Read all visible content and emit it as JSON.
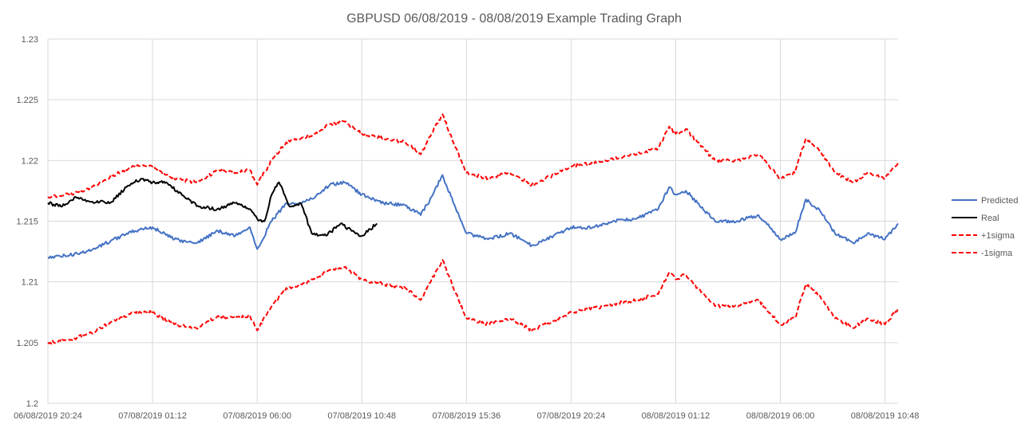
{
  "chart_data": {
    "type": "line",
    "title": "GBPUSD 06/08/2019 - 08/08/2019 Example Trading Graph",
    "xlabel": "",
    "ylabel": "",
    "ylim": [
      1.2,
      1.23
    ],
    "yticks": [
      "1.2",
      "1.205",
      "1.21",
      "1.215",
      "1.22",
      "1.225",
      "1.23"
    ],
    "xticks": [
      "06/08/2019 20:24",
      "07/08/2019 01:12",
      "07/08/2019 06:00",
      "07/08/2019 10:48",
      "07/08/2019 15:36",
      "07/08/2019 20:24",
      "08/08/2019 01:12",
      "08/08/2019 06:00",
      "08/08/2019 10:48"
    ],
    "xlim": [
      "06/08/2019 20:24",
      "08/08/2019 11:24"
    ],
    "grid": true,
    "legend_position": "right",
    "series": [
      {
        "name": "Predicted",
        "color": "#4472c4",
        "style": "solid",
        "points": [
          [
            "06/08/2019 20:24",
            1.212
          ],
          [
            "06/08/2019 21:24",
            1.2122
          ],
          [
            "06/08/2019 22:24",
            1.2126
          ],
          [
            "06/08/2019 23:24",
            1.2135
          ],
          [
            "07/08/2019 00:24",
            1.2142
          ],
          [
            "07/08/2019 01:12",
            1.2145
          ],
          [
            "07/08/2019 02:12",
            1.2135
          ],
          [
            "07/08/2019 03:12",
            1.2132
          ],
          [
            "07/08/2019 04:12",
            1.2142
          ],
          [
            "07/08/2019 05:00",
            1.2138
          ],
          [
            "07/08/2019 05:40",
            1.2145
          ],
          [
            "07/08/2019 06:00",
            1.2127
          ],
          [
            "07/08/2019 06:40",
            1.215
          ],
          [
            "07/08/2019 07:20",
            1.2165
          ],
          [
            "07/08/2019 08:00",
            1.2165
          ],
          [
            "07/08/2019 08:40",
            1.217
          ],
          [
            "07/08/2019 09:20",
            1.218
          ],
          [
            "07/08/2019 10:00",
            1.2182
          ],
          [
            "07/08/2019 10:48",
            1.2172
          ],
          [
            "07/08/2019 11:48",
            1.2165
          ],
          [
            "07/08/2019 12:48",
            1.2163
          ],
          [
            "07/08/2019 13:30",
            1.2155
          ],
          [
            "07/08/2019 14:00",
            1.217
          ],
          [
            "07/08/2019 14:30",
            1.2188
          ],
          [
            "07/08/2019 15:00",
            1.2165
          ],
          [
            "07/08/2019 15:36",
            1.214
          ],
          [
            "07/08/2019 16:36",
            1.2135
          ],
          [
            "07/08/2019 17:36",
            1.214
          ],
          [
            "07/08/2019 18:36",
            1.213
          ],
          [
            "07/08/2019 19:36",
            1.2138
          ],
          [
            "07/08/2019 20:24",
            1.2145
          ],
          [
            "07/08/2019 21:24",
            1.2145
          ],
          [
            "07/08/2019 22:24",
            1.215
          ],
          [
            "07/08/2019 23:24",
            1.2152
          ],
          [
            "08/08/2019 00:24",
            1.216
          ],
          [
            "08/08/2019 00:54",
            1.2178
          ],
          [
            "08/08/2019 01:12",
            1.2172
          ],
          [
            "08/08/2019 01:40",
            1.2175
          ],
          [
            "08/08/2019 02:12",
            1.2165
          ],
          [
            "08/08/2019 03:00",
            1.215
          ],
          [
            "08/08/2019 04:00",
            1.215
          ],
          [
            "08/08/2019 05:00",
            1.2155
          ],
          [
            "08/08/2019 06:00",
            1.2135
          ],
          [
            "08/08/2019 06:40",
            1.214
          ],
          [
            "08/08/2019 07:10",
            1.2168
          ],
          [
            "08/08/2019 07:50",
            1.2158
          ],
          [
            "08/08/2019 08:30",
            1.214
          ],
          [
            "08/08/2019 09:20",
            1.2132
          ],
          [
            "08/08/2019 10:00",
            1.214
          ],
          [
            "08/08/2019 10:48",
            1.2135
          ],
          [
            "08/08/2019 11:24",
            1.2148
          ]
        ]
      },
      {
        "name": "Real",
        "color": "#000000",
        "style": "solid",
        "points": [
          [
            "06/08/2019 20:24",
            1.2165
          ],
          [
            "06/08/2019 21:00",
            1.2162
          ],
          [
            "06/08/2019 21:40",
            1.217
          ],
          [
            "06/08/2019 22:20",
            1.2166
          ],
          [
            "06/08/2019 23:20",
            1.2166
          ],
          [
            "07/08/2019 00:00",
            1.2178
          ],
          [
            "07/08/2019 00:40",
            1.2185
          ],
          [
            "07/08/2019 01:12",
            1.2182
          ],
          [
            "07/08/2019 01:50",
            1.2182
          ],
          [
            "07/08/2019 02:40",
            1.217
          ],
          [
            "07/08/2019 03:20",
            1.2162
          ],
          [
            "07/08/2019 04:10",
            1.216
          ],
          [
            "07/08/2019 05:00",
            1.2165
          ],
          [
            "07/08/2019 05:40",
            1.216
          ],
          [
            "07/08/2019 06:00",
            1.2152
          ],
          [
            "07/08/2019 06:20",
            1.215
          ],
          [
            "07/08/2019 06:40",
            1.2172
          ],
          [
            "07/08/2019 07:00",
            1.2182
          ],
          [
            "07/08/2019 07:30",
            1.2162
          ],
          [
            "07/08/2019 08:00",
            1.2165
          ],
          [
            "07/08/2019 08:30",
            1.214
          ],
          [
            "07/08/2019 09:10",
            1.2138
          ],
          [
            "07/08/2019 09:50",
            1.2148
          ],
          [
            "07/08/2019 10:20",
            1.2142
          ],
          [
            "07/08/2019 10:48",
            1.2138
          ],
          [
            "07/08/2019 11:30",
            1.2148
          ]
        ]
      },
      {
        "name": "+1sigma",
        "color": "#ff0000",
        "style": "dashed",
        "points": [
          [
            "06/08/2019 20:24",
            1.217
          ],
          [
            "06/08/2019 21:24",
            1.2172
          ],
          [
            "06/08/2019 22:24",
            1.2178
          ],
          [
            "06/08/2019 23:24",
            1.2188
          ],
          [
            "07/08/2019 00:24",
            1.2195
          ],
          [
            "07/08/2019 01:12",
            1.2195
          ],
          [
            "07/08/2019 02:12",
            1.2185
          ],
          [
            "07/08/2019 03:12",
            1.2182
          ],
          [
            "07/08/2019 04:12",
            1.2192
          ],
          [
            "07/08/2019 05:00",
            1.219
          ],
          [
            "07/08/2019 05:40",
            1.2192
          ],
          [
            "07/08/2019 06:00",
            1.218
          ],
          [
            "07/08/2019 06:40",
            1.22
          ],
          [
            "07/08/2019 07:20",
            1.2215
          ],
          [
            "07/08/2019 08:00",
            1.2218
          ],
          [
            "07/08/2019 08:40",
            1.2222
          ],
          [
            "07/08/2019 09:20",
            1.223
          ],
          [
            "07/08/2019 10:00",
            1.2232
          ],
          [
            "07/08/2019 10:48",
            1.2222
          ],
          [
            "07/08/2019 11:48",
            1.2218
          ],
          [
            "07/08/2019 12:48",
            1.2215
          ],
          [
            "07/08/2019 13:30",
            1.2205
          ],
          [
            "07/08/2019 14:00",
            1.2222
          ],
          [
            "07/08/2019 14:30",
            1.2238
          ],
          [
            "07/08/2019 15:00",
            1.2215
          ],
          [
            "07/08/2019 15:36",
            1.219
          ],
          [
            "07/08/2019 16:36",
            1.2185
          ],
          [
            "07/08/2019 17:36",
            1.219
          ],
          [
            "07/08/2019 18:36",
            1.218
          ],
          [
            "07/08/2019 19:36",
            1.2188
          ],
          [
            "07/08/2019 20:24",
            1.2195
          ],
          [
            "07/08/2019 21:24",
            1.2198
          ],
          [
            "07/08/2019 22:24",
            1.2202
          ],
          [
            "07/08/2019 23:24",
            1.2205
          ],
          [
            "08/08/2019 00:24",
            1.221
          ],
          [
            "08/08/2019 00:54",
            1.2228
          ],
          [
            "08/08/2019 01:12",
            1.2222
          ],
          [
            "08/08/2019 01:40",
            1.2226
          ],
          [
            "08/08/2019 02:12",
            1.2215
          ],
          [
            "08/08/2019 03:00",
            1.22
          ],
          [
            "08/08/2019 04:00",
            1.22
          ],
          [
            "08/08/2019 05:00",
            1.2205
          ],
          [
            "08/08/2019 06:00",
            1.2185
          ],
          [
            "08/08/2019 06:40",
            1.219
          ],
          [
            "08/08/2019 07:10",
            1.2218
          ],
          [
            "08/08/2019 07:50",
            1.2208
          ],
          [
            "08/08/2019 08:30",
            1.219
          ],
          [
            "08/08/2019 09:20",
            1.2182
          ],
          [
            "08/08/2019 10:00",
            1.219
          ],
          [
            "08/08/2019 10:48",
            1.2185
          ],
          [
            "08/08/2019 11:24",
            1.2198
          ]
        ]
      },
      {
        "name": "-1sigma",
        "color": "#ff0000",
        "style": "dashed",
        "points": [
          [
            "06/08/2019 20:24",
            1.205
          ],
          [
            "06/08/2019 21:24",
            1.2052
          ],
          [
            "06/08/2019 22:24",
            1.2058
          ],
          [
            "06/08/2019 23:24",
            1.2068
          ],
          [
            "07/08/2019 00:24",
            1.2075
          ],
          [
            "07/08/2019 01:12",
            1.2075
          ],
          [
            "07/08/2019 02:12",
            1.2065
          ],
          [
            "07/08/2019 03:12",
            1.2062
          ],
          [
            "07/08/2019 04:12",
            1.2072
          ],
          [
            "07/08/2019 05:00",
            1.207
          ],
          [
            "07/08/2019 05:40",
            1.2072
          ],
          [
            "07/08/2019 06:00",
            1.206
          ],
          [
            "07/08/2019 06:40",
            1.208
          ],
          [
            "07/08/2019 07:20",
            1.2095
          ],
          [
            "07/08/2019 08:00",
            1.2098
          ],
          [
            "07/08/2019 08:40",
            1.2102
          ],
          [
            "07/08/2019 09:20",
            1.211
          ],
          [
            "07/08/2019 10:00",
            1.2112
          ],
          [
            "07/08/2019 10:48",
            1.2102
          ],
          [
            "07/08/2019 11:48",
            1.2098
          ],
          [
            "07/08/2019 12:48",
            1.2095
          ],
          [
            "07/08/2019 13:30",
            1.2085
          ],
          [
            "07/08/2019 14:00",
            1.2102
          ],
          [
            "07/08/2019 14:30",
            1.2118
          ],
          [
            "07/08/2019 15:00",
            1.2095
          ],
          [
            "07/08/2019 15:36",
            1.207
          ],
          [
            "07/08/2019 16:36",
            1.2065
          ],
          [
            "07/08/2019 17:36",
            1.207
          ],
          [
            "07/08/2019 18:36",
            1.206
          ],
          [
            "07/08/2019 19:36",
            1.2068
          ],
          [
            "07/08/2019 20:24",
            1.2075
          ],
          [
            "07/08/2019 21:24",
            1.2078
          ],
          [
            "07/08/2019 22:24",
            1.2082
          ],
          [
            "07/08/2019 23:24",
            1.2085
          ],
          [
            "08/08/2019 00:24",
            1.209
          ],
          [
            "08/08/2019 00:54",
            1.2108
          ],
          [
            "08/08/2019 01:12",
            1.2102
          ],
          [
            "08/08/2019 01:40",
            1.2106
          ],
          [
            "08/08/2019 02:12",
            1.2095
          ],
          [
            "08/08/2019 03:00",
            1.208
          ],
          [
            "08/08/2019 04:00",
            1.208
          ],
          [
            "08/08/2019 05:00",
            1.2085
          ],
          [
            "08/08/2019 06:00",
            1.2065
          ],
          [
            "08/08/2019 06:40",
            1.207
          ],
          [
            "08/08/2019 07:10",
            1.2098
          ],
          [
            "08/08/2019 07:50",
            1.2088
          ],
          [
            "08/08/2019 08:30",
            1.207
          ],
          [
            "08/08/2019 09:20",
            1.2062
          ],
          [
            "08/08/2019 10:00",
            1.207
          ],
          [
            "08/08/2019 10:48",
            1.2065
          ],
          [
            "08/08/2019 11:24",
            1.2078
          ]
        ]
      }
    ]
  }
}
